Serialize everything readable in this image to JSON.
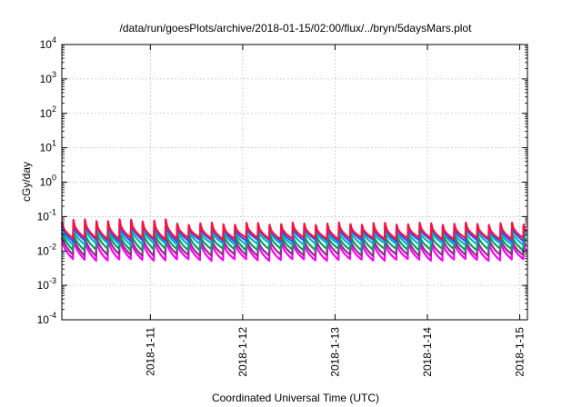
{
  "chart_data": {
    "type": "line",
    "title": "/data/run/goesPlots/archive/2018-01-15/02:00/flux/../bryn/5daysMars.plot",
    "xlabel": "Coordinated Universal Time (UTC)",
    "ylabel": "cGy/day",
    "yscale": "log",
    "ylim": [
      0.0001,
      10000
    ],
    "y_ticks": [
      {
        "value": 0.0001,
        "base": "10",
        "exp": "-4"
      },
      {
        "value": 0.001,
        "base": "10",
        "exp": "-3"
      },
      {
        "value": 0.01,
        "base": "10",
        "exp": "-2"
      },
      {
        "value": 0.1,
        "base": "10",
        "exp": "-1"
      },
      {
        "value": 1,
        "base": "10",
        "exp": "0"
      },
      {
        "value": 10,
        "base": "10",
        "exp": "1"
      },
      {
        "value": 100,
        "base": "10",
        "exp": "2"
      },
      {
        "value": 1000,
        "base": "10",
        "exp": "3"
      },
      {
        "value": 10000,
        "base": "10",
        "exp": "4"
      }
    ],
    "xlim": [
      "2018-01-10T01:00",
      "2018-01-15T02:00"
    ],
    "x_ticks": [
      "2018-1-11",
      "2018-1-12",
      "2018-1-13",
      "2018-1-14",
      "2018-1-15"
    ],
    "grid": true,
    "cycle_hours": 3,
    "series": [
      {
        "color": "#ff00ff",
        "peak": 0.02,
        "trough": 0.0055
      },
      {
        "color": "#9a2a8a",
        "peak": 0.026,
        "trough": 0.0075
      },
      {
        "color": "#00a060",
        "peak": 0.034,
        "trough": 0.011
      },
      {
        "color": "#00b0c0",
        "peak": 0.044,
        "trough": 0.016
      },
      {
        "color": "#3050ff",
        "peak": 0.055,
        "trough": 0.02
      },
      {
        "color": "#ff1040",
        "peak": 0.062,
        "trough": 0.023
      }
    ]
  }
}
